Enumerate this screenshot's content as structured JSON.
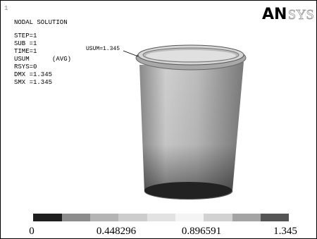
{
  "window_number": "1",
  "logo": {
    "bold": "AN",
    "light": "SYS"
  },
  "info": [
    "NODAL SOLUTION",
    "STEP=1",
    "SUB =1",
    "TIME=1",
    "USUM      (AVG)",
    "RSYS=0",
    "DMX =1.345",
    "SMX =1.345"
  ],
  "annotation": "USUM=1.345",
  "legend": {
    "labels": [
      "0",
      "0.448296",
      "0.896591",
      "1.345"
    ]
  }
}
